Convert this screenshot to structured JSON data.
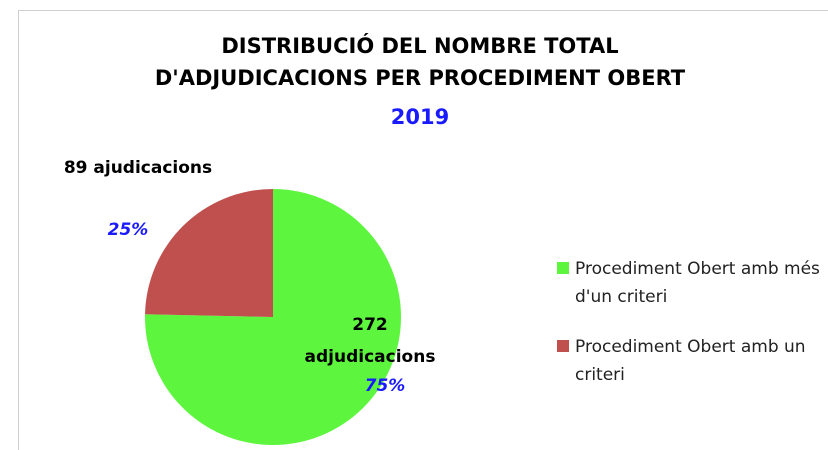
{
  "chart_data": {
    "type": "pie",
    "title": [
      "DISTRIBUCIÓ DEL NOMBRE TOTAL",
      "D'ADJUDICACIONS PER PROCEDIMENT OBERT"
    ],
    "subtitle": "2019",
    "categories": [
      "Procediment Obert amb més d'un criteri",
      "Procediment Obert amb un criteri"
    ],
    "values": [
      272,
      89
    ],
    "value_labels": [
      "272 adjudicacions",
      "89 ajudicacions"
    ],
    "percent_labels": [
      "75%",
      "25%"
    ],
    "colors": [
      "#5ef53f",
      "#c0504d"
    ],
    "legend": "right"
  }
}
